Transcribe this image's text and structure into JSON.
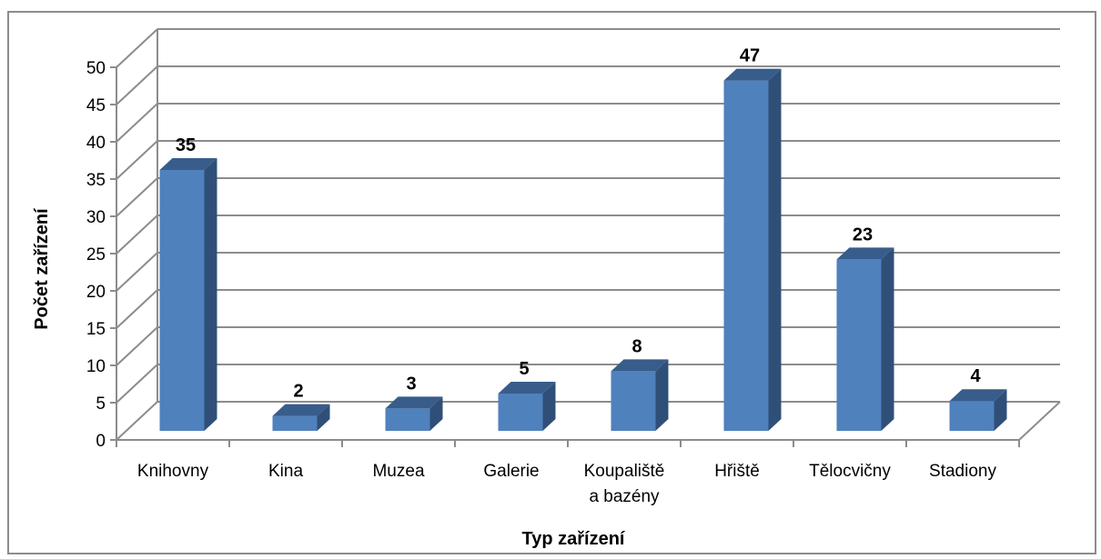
{
  "chart_data": {
    "type": "bar",
    "style": "3d-column",
    "categories": [
      "Knihovny",
      "Kina",
      "Muzea",
      "Galerie",
      "Koupaliště a bazény",
      "Hřiště",
      "Tělocvičny",
      "Stadiony"
    ],
    "category_lines": [
      [
        "Knihovny"
      ],
      [
        "Kina"
      ],
      [
        "Muzea"
      ],
      [
        "Galerie"
      ],
      [
        "Koupaliště",
        "a bazény"
      ],
      [
        "Hřiště"
      ],
      [
        "Tělocvičny"
      ],
      [
        "Stadiony"
      ]
    ],
    "values": [
      35,
      2,
      3,
      5,
      8,
      47,
      23,
      4
    ],
    "xlabel": "Typ zařízení",
    "ylabel": "Počet zařízení",
    "ylim": [
      0,
      50
    ],
    "ytick_step": 5,
    "grid": true,
    "legend": "none",
    "colors": {
      "bar_front": "#4f81bd",
      "bar_side": "#2f4f78",
      "bar_top": "#385d8a",
      "grid": "#8c8c8c"
    }
  }
}
